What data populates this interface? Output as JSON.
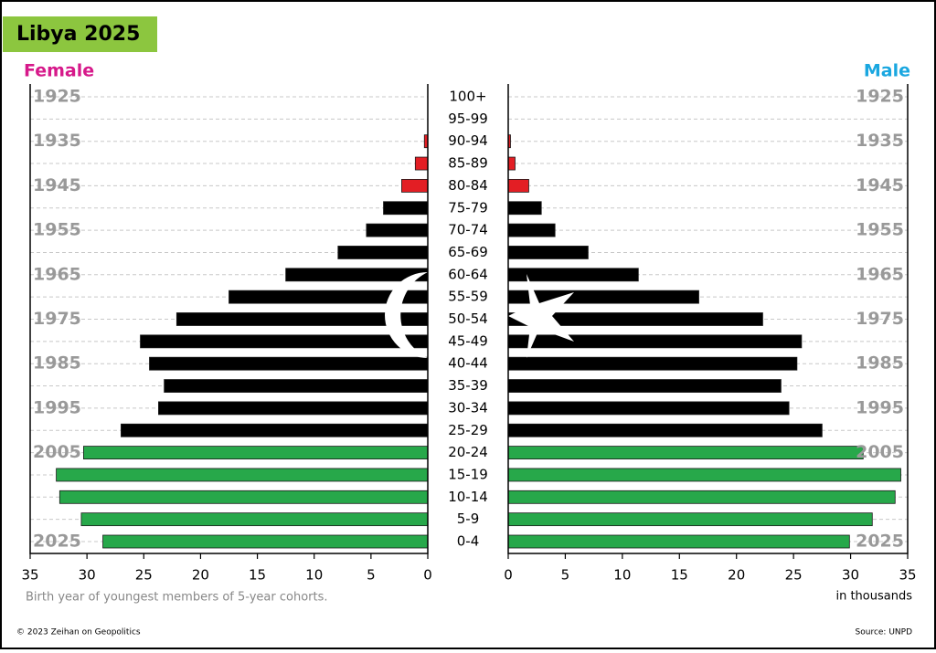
{
  "chart_data": {
    "type": "pyramid",
    "title": "Libya 2025",
    "categories": [
      "100+",
      "95-99",
      "90-94",
      "85-89",
      "80-84",
      "75-79",
      "70-74",
      "65-69",
      "60-64",
      "55-59",
      "50-54",
      "45-49",
      "40-44",
      "35-39",
      "30-34",
      "25-29",
      "20-24",
      "15-19",
      "10-14",
      "5-9",
      "0-4"
    ],
    "birth_years": [
      1925,
      null,
      1935,
      null,
      1945,
      null,
      1955,
      null,
      1965,
      null,
      1975,
      null,
      1985,
      null,
      1995,
      null,
      2005,
      null,
      null,
      null,
      2025
    ],
    "bar_colors": [
      "#e31e24",
      "#e31e24",
      "#e31e24",
      "#e31e24",
      "#e31e24",
      "#000000",
      "#000000",
      "#000000",
      "#000000",
      "#000000",
      "#000000",
      "#000000",
      "#000000",
      "#000000",
      "#000000",
      "#000000",
      "#27a84a",
      "#27a84a",
      "#27a84a",
      "#27a84a",
      "#27a84a"
    ],
    "series": [
      {
        "name": "Female",
        "color": "#d6198a",
        "values": [
          0,
          0,
          0.3,
          1.1,
          2.3,
          3.9,
          5.4,
          7.9,
          12.5,
          17.5,
          22.1,
          25.3,
          24.5,
          23.2,
          23.7,
          27.0,
          30.3,
          32.7,
          32.4,
          30.5,
          28.6
        ]
      },
      {
        "name": "Male",
        "color": "#1aa7e0",
        "values": [
          0,
          0,
          0.2,
          0.6,
          1.8,
          2.9,
          4.1,
          7.0,
          11.4,
          16.7,
          22.3,
          25.7,
          25.3,
          23.9,
          24.6,
          27.5,
          31.1,
          34.4,
          33.9,
          31.9,
          29.9
        ]
      }
    ],
    "xlim": [
      0,
      35
    ],
    "xticks": [
      0,
      5,
      10,
      15,
      20,
      25,
      30,
      35
    ],
    "x_label": "in thousands",
    "note": "Birth year of youngest members of 5-year cohorts.",
    "grid": true
  },
  "footer": {
    "copyright": "© 2023 Zeihan on Geopolitics",
    "source": "Source: UNPD"
  }
}
